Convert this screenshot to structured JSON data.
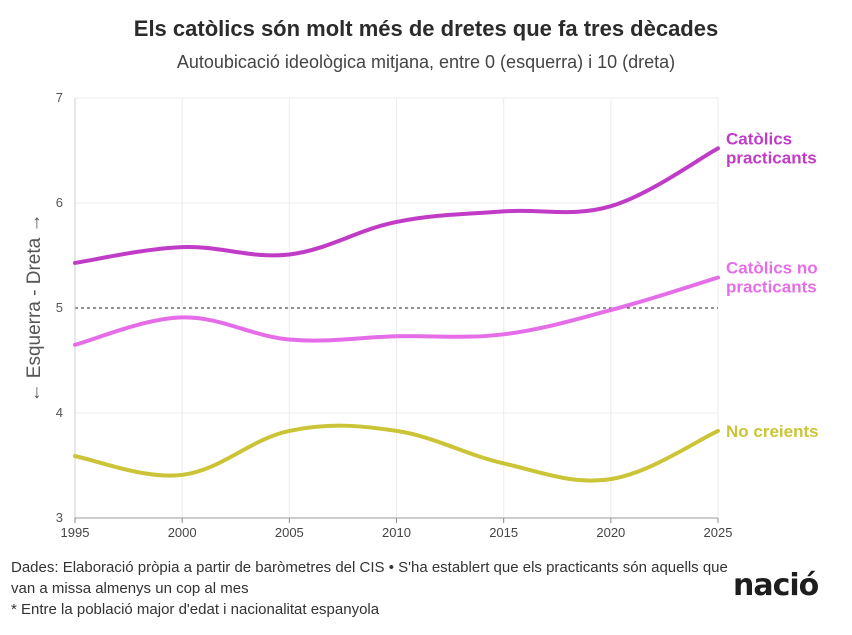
{
  "title": "Els catòlics són molt més de dretes que fa tres dècades",
  "subtitle": "Autoubicació ideològica mitjana, entre 0 (esquerra) i 10 (dreta)",
  "chart_data": {
    "type": "line",
    "title": "Els catòlics són molt més de dretes que fa tres dècades",
    "subtitle": "Autoubicació ideològica mitjana, entre 0 (esquerra) i 10 (dreta)",
    "xlabel": "",
    "ylabel": "← Esquerra - Dreta →",
    "x": [
      1995,
      2000,
      2005,
      2010,
      2015,
      2020,
      2025
    ],
    "xlim": [
      1995,
      2025
    ],
    "ylim": [
      3,
      7
    ],
    "xticks": [
      "1995",
      "2000",
      "2005",
      "2010",
      "2015",
      "2020",
      "2025"
    ],
    "yticks": [
      "3",
      "4",
      "5",
      "6",
      "7"
    ],
    "reference_line": 5,
    "grid": true,
    "series": [
      {
        "name": "Catòlics practicants",
        "color": "#c03cc6",
        "values": [
          5.43,
          5.58,
          5.51,
          5.82,
          5.92,
          5.97,
          6.52
        ]
      },
      {
        "name": "Catòlics no practicants",
        "color": "#e56ee8",
        "values": [
          4.65,
          4.91,
          4.7,
          4.73,
          4.75,
          4.98,
          5.29
        ]
      },
      {
        "name": "No creients",
        "color": "#cbc437",
        "values": [
          3.59,
          3.41,
          3.83,
          3.83,
          3.52,
          3.37,
          3.83
        ]
      }
    ],
    "legend_labels": [
      {
        "series": "Catòlics practicants",
        "lines": [
          "Catòlics",
          "practicants"
        ]
      },
      {
        "series": "Catòlics no practicants",
        "lines": [
          "Catòlics no",
          "practicants"
        ]
      },
      {
        "series": "No creients",
        "lines": [
          "No creients"
        ]
      }
    ]
  },
  "footer": {
    "source": "Dades: Elaboració pròpia a partir de baròmetres del CIS • S'ha establert que els practicants són aquells que van a missa almenys un cop al mes",
    "note": "* Entre la població major d'edat i nacionalitat espanyola"
  },
  "logo": "nació"
}
